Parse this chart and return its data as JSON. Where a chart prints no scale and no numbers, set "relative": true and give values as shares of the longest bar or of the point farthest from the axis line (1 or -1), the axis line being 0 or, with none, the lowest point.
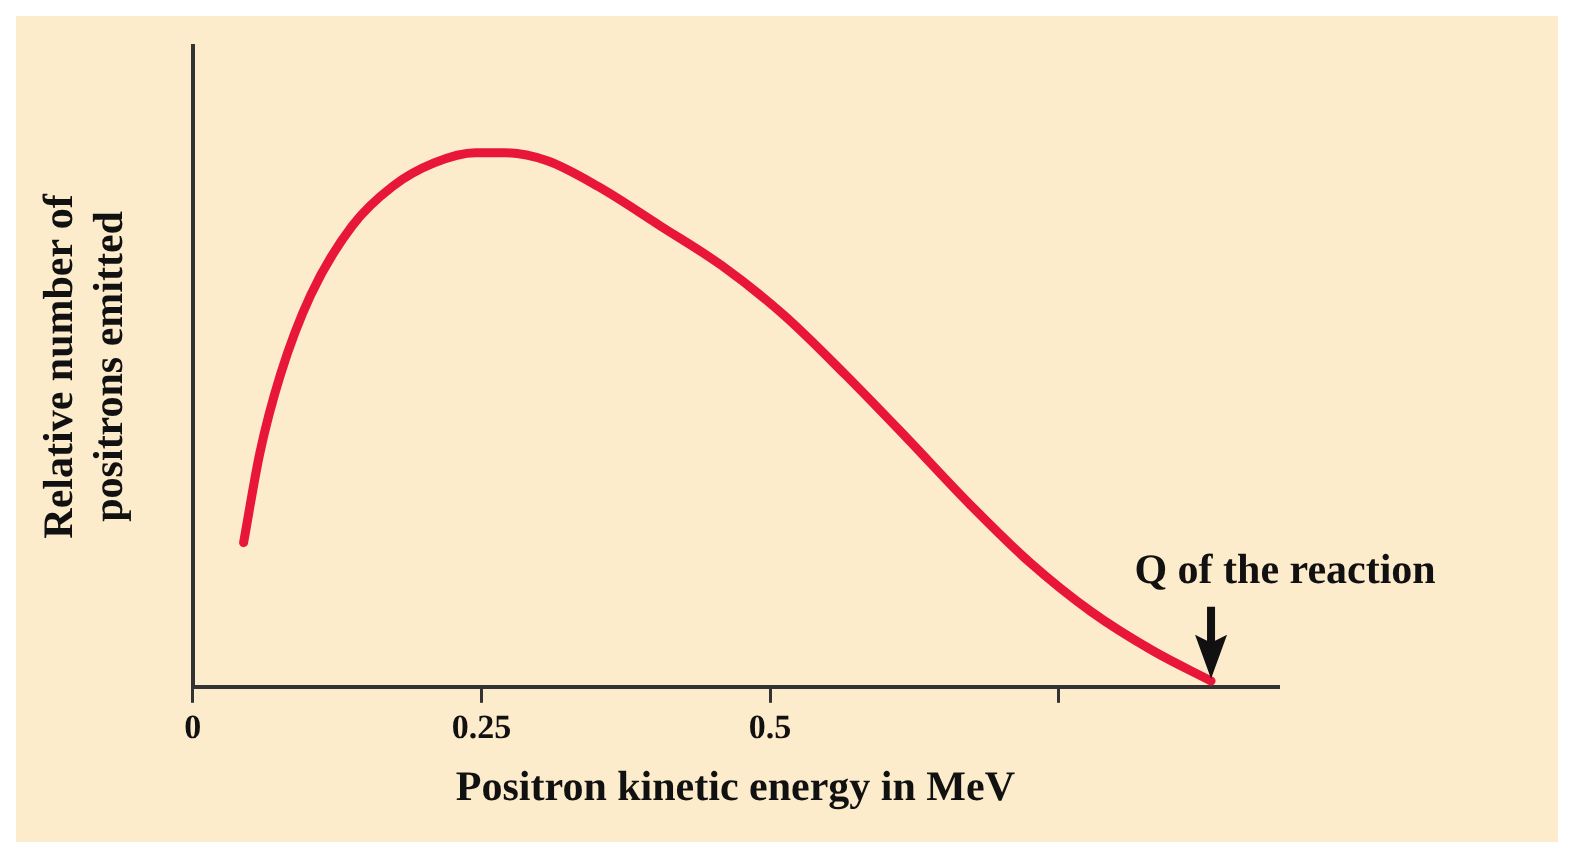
{
  "chart_data": {
    "type": "line",
    "relative": true,
    "xlabel": "Positron kinetic energy in MeV",
    "ylabel": "Relative number of positrons emitted",
    "x": [
      0.044,
      0.058,
      0.076,
      0.102,
      0.138,
      0.173,
      0.209,
      0.245,
      0.271,
      0.307,
      0.351,
      0.405,
      0.458,
      0.512,
      0.565,
      0.618,
      0.672,
      0.725,
      0.778,
      0.832,
      0.882
    ],
    "series": [
      {
        "color": "#e8173a",
        "values": [
          0.27,
          0.437,
          0.585,
          0.733,
          0.863,
          0.937,
          0.981,
          1,
          1,
          0.985,
          0.937,
          0.863,
          0.789,
          0.696,
          0.585,
          0.467,
          0.344,
          0.233,
          0.141,
          0.067,
          0.011
        ]
      }
    ],
    "xlim": [
      0,
      0.94
    ],
    "xticks": [
      0,
      0.25,
      0.5,
      {
        "value": 0.75,
        "label": null
      }
    ],
    "annotations": [
      {
        "text": "Q of the reaction",
        "x": 0.882,
        "y": 0
      }
    ],
    "legend": false,
    "marker": "none",
    "line_style": "solid"
  }
}
